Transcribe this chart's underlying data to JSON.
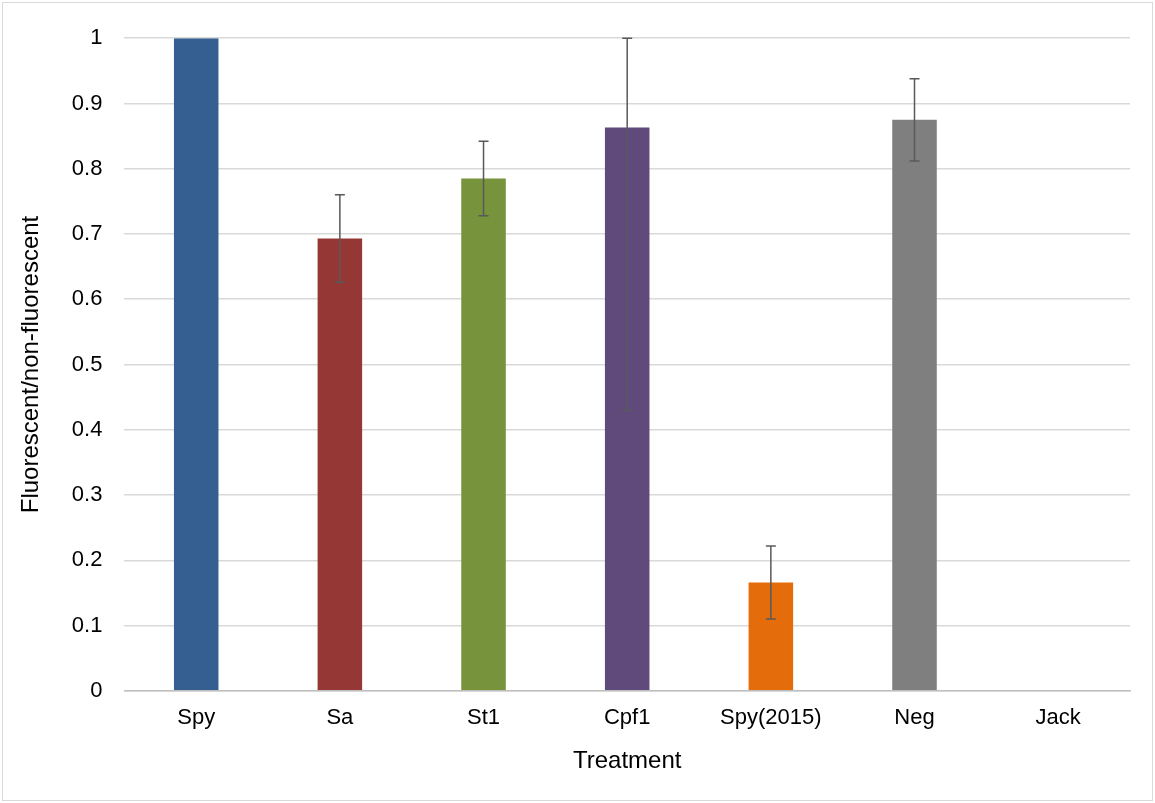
{
  "chart_data": {
    "type": "bar",
    "xlabel": "Treatment",
    "ylabel": "Fluorescent/non-fluorescent",
    "categories": [
      "Spy",
      "Sa",
      "St1",
      "Cpf1",
      "Spy(2015)",
      "Neg",
      "Jack"
    ],
    "values": [
      1,
      0.693,
      0.785,
      0.863,
      0.166,
      0.875,
      0
    ],
    "colors": [
      "#355f91",
      "#953735",
      "#77933c",
      "#604a7b",
      "#e46c0a",
      "#7f7f7f",
      "#4bacc6"
    ],
    "errors": [
      null,
      0.067,
      0.057,
      [
        0.43,
        1
      ],
      0.056,
      0.063,
      null
    ],
    "ylim": [
      0,
      1
    ],
    "yticks": [
      0,
      0.1,
      0.2,
      0.3,
      0.4,
      0.5,
      0.6,
      0.7,
      0.8,
      0.9,
      1
    ],
    "grid": "y",
    "legend": false
  }
}
